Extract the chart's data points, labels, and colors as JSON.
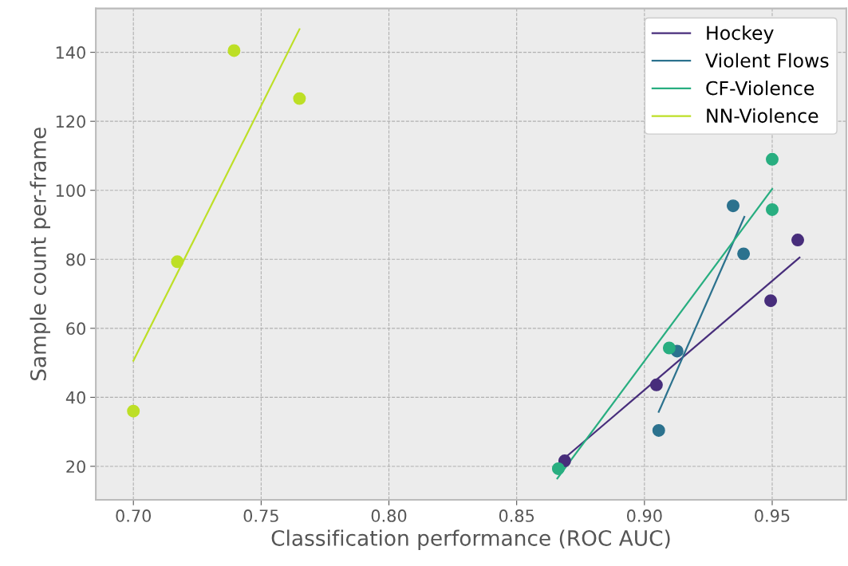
{
  "chart_data": {
    "type": "scatter",
    "xlabel": "Classification performance (ROC AUC)",
    "ylabel": "Sample count per-frame",
    "xlim": [
      0.6853,
      0.979
    ],
    "ylim": [
      10.3,
      152.7
    ],
    "xticks": [
      {
        "value": 0.7,
        "label": "0.70"
      },
      {
        "value": 0.75,
        "label": "0.75"
      },
      {
        "value": 0.8,
        "label": "0.80"
      },
      {
        "value": 0.85,
        "label": "0.85"
      },
      {
        "value": 0.9,
        "label": "0.90"
      },
      {
        "value": 0.95,
        "label": "0.95"
      }
    ],
    "yticks": [
      20,
      40,
      60,
      80,
      100,
      120,
      140
    ],
    "grid": true,
    "legend": "top right",
    "line_style": "solid",
    "series": [
      {
        "name": "Hockey",
        "type": "line",
        "marker": "none",
        "color": "#472d7b",
        "x": [
          0.8669,
          0.9607
        ],
        "values": [
          21.2,
          80.5
        ]
      },
      {
        "name": "Violent Flows",
        "type": "line",
        "marker": "none",
        "color": "#2c728e",
        "x": [
          0.9056,
          0.9391
        ],
        "values": [
          35.8,
          92.3
        ]
      },
      {
        "name": "CF-Violence",
        "type": "line",
        "marker": "none",
        "color": "#28ae80",
        "x": [
          0.8659,
          0.95
        ],
        "values": [
          16.5,
          100.4
        ]
      },
      {
        "name": "NN-Violence",
        "type": "line",
        "marker": "none",
        "color": "#bddf26",
        "x": [
          0.7,
          0.765
        ],
        "values": [
          50.6,
          146.7
        ]
      },
      {
        "marker": "circle",
        "color": "#472d7b",
        "x": [
          0.8688,
          0.9047,
          0.9494,
          0.96
        ],
        "values": [
          21.6,
          43.6,
          68.0,
          85.6
        ]
      },
      {
        "marker": "circle",
        "color": "#2c728e",
        "x": [
          0.9056,
          0.9128,
          0.9347,
          0.9388
        ],
        "values": [
          30.4,
          53.4,
          95.5,
          81.6
        ]
      },
      {
        "marker": "circle",
        "color": "#28ae80",
        "x": [
          0.8663,
          0.9097,
          0.95,
          0.95
        ],
        "values": [
          19.3,
          54.3,
          94.4,
          109.0
        ]
      },
      {
        "marker": "circle",
        "color": "#bddf26",
        "x": [
          0.7,
          0.7172,
          0.7394,
          0.765
        ],
        "values": [
          36.0,
          79.3,
          140.5,
          126.6
        ]
      }
    ]
  }
}
